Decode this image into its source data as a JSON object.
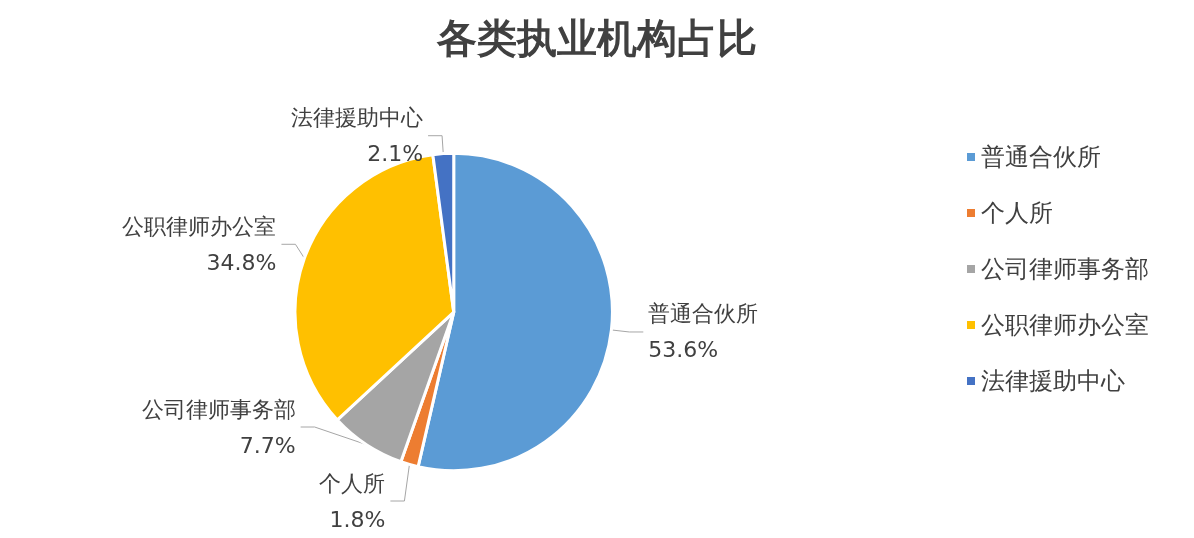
{
  "chart_data": {
    "type": "pie",
    "title": "各类执业机构占比",
    "categories": [
      "普通合伙所",
      "个人所",
      "公司律师事务部",
      "公职律师办公室",
      "法律援助中心"
    ],
    "values": [
      53.6,
      1.8,
      7.7,
      34.8,
      2.1
    ],
    "value_labels": [
      "53.6%",
      "1.8%",
      "7.7%",
      "34.8%",
      "2.1%"
    ],
    "colors": [
      "#5b9bd5",
      "#ed7d31",
      "#a5a5a5",
      "#ffc000",
      "#4472c4"
    ],
    "legend": "right"
  }
}
